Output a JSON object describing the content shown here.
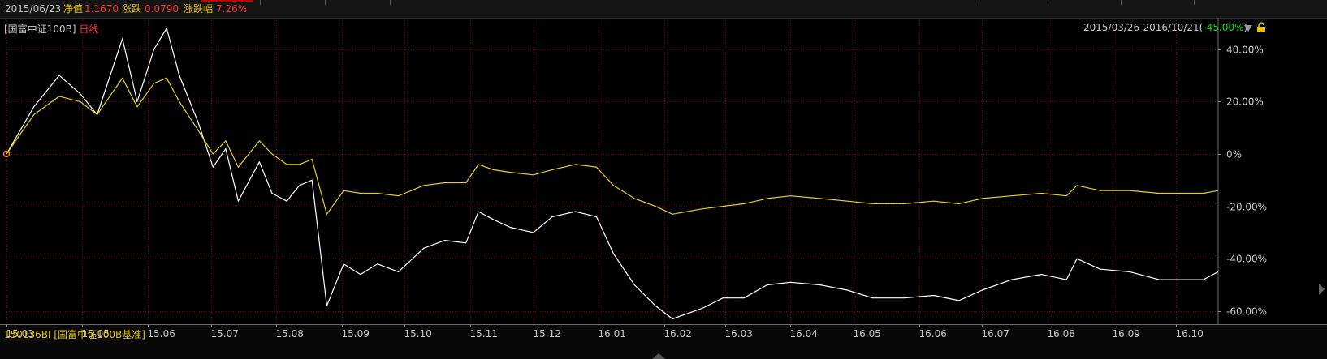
{
  "header": {
    "date": "2015/06/23",
    "nav_label": "净值",
    "nav_value": "1.1670",
    "change_label": "涨跌",
    "change_value": "0.0790",
    "pct_label": "涨跌幅",
    "pct_value": "7.26%"
  },
  "legend": {
    "fund_name": "[国富中证100B]",
    "period": "日线",
    "benchmark": "150136BI [国富中证100B基准]"
  },
  "range": {
    "text": "2015/03/26-2016/10/21",
    "pct_open": "(",
    "pct": "-45.00%",
    "pct_close": ")"
  },
  "colors": {
    "fund": "#ffffff",
    "benchmark": "#e6d21e",
    "grid": "#8a0000",
    "positive": "#ff3030",
    "negative": "#00e000",
    "label_yellow": "#e6c300"
  },
  "chart_data": {
    "type": "line",
    "title": "",
    "xlabel": "",
    "ylabel": "",
    "x_ticks": [
      "15.03",
      "15.05",
      "15.06",
      "15.07",
      "15.08",
      "15.09",
      "15.10",
      "15.11",
      "15.12",
      "16.01",
      "16.02",
      "16.03",
      "16.04",
      "16.05",
      "16.06",
      "16.07",
      "16.08",
      "16.09",
      "16.10"
    ],
    "y_ticks": [
      "40.00%",
      "20.00%",
      "0%",
      "-20.00%",
      "-40.00%",
      "-60.00%"
    ],
    "y_tick_values": [
      40,
      20,
      0,
      -20,
      -40,
      -60
    ],
    "ylim": [
      -65,
      52
    ],
    "xlim": [
      "2015-03-26",
      "2016-10-21"
    ],
    "grid": true,
    "series": [
      {
        "name": "国富中证100B",
        "x": [
          "2015-03-26",
          "2015-04-08",
          "2015-04-20",
          "2015-04-30",
          "2015-05-08",
          "2015-05-20",
          "2015-05-27",
          "2015-06-04",
          "2015-06-10",
          "2015-06-16",
          "2015-06-25",
          "2015-07-02",
          "2015-07-08",
          "2015-07-14",
          "2015-07-24",
          "2015-07-30",
          "2015-08-06",
          "2015-08-12",
          "2015-08-18",
          "2015-08-25",
          "2015-09-02",
          "2015-09-10",
          "2015-09-18",
          "2015-09-28",
          "2015-10-10",
          "2015-10-20",
          "2015-10-30",
          "2015-11-05",
          "2015-11-12",
          "2015-11-20",
          "2015-12-01",
          "2015-12-10",
          "2015-12-21",
          "2015-12-31",
          "2016-01-08",
          "2016-01-18",
          "2016-01-28",
          "2016-02-05",
          "2016-02-19",
          "2016-02-29",
          "2016-03-10",
          "2016-03-21",
          "2016-04-01",
          "2016-04-15",
          "2016-04-28",
          "2016-05-10",
          "2016-05-25",
          "2016-06-08",
          "2016-06-20",
          "2016-07-01",
          "2016-07-15",
          "2016-07-29",
          "2016-08-10",
          "2016-08-15",
          "2016-08-26",
          "2016-09-09",
          "2016-09-23",
          "2016-10-14",
          "2016-10-21"
        ],
        "values": [
          0,
          18,
          30,
          23,
          15,
          44,
          20,
          40,
          48,
          30,
          12,
          -5,
          2,
          -18,
          -3,
          -15,
          -18,
          -12,
          -10,
          -58,
          -42,
          -46,
          -42,
          -45,
          -36,
          -33,
          -34,
          -22,
          -25,
          -28,
          -30,
          -24,
          -22,
          -24,
          -38,
          -50,
          -58,
          -63,
          -59,
          -55,
          -55,
          -50,
          -49,
          -50,
          -52,
          -55,
          -55,
          -54,
          -56,
          -52,
          -48,
          -46,
          -48,
          -40,
          -44,
          -45,
          -48,
          -48,
          -45
        ]
      },
      {
        "name": "150136BI [国富中证100B基准]",
        "x": [
          "2015-03-26",
          "2015-04-08",
          "2015-04-20",
          "2015-04-30",
          "2015-05-08",
          "2015-05-20",
          "2015-05-27",
          "2015-06-04",
          "2015-06-10",
          "2015-06-16",
          "2015-06-25",
          "2015-07-02",
          "2015-07-08",
          "2015-07-14",
          "2015-07-24",
          "2015-07-30",
          "2015-08-06",
          "2015-08-12",
          "2015-08-18",
          "2015-08-25",
          "2015-09-02",
          "2015-09-10",
          "2015-09-18",
          "2015-09-28",
          "2015-10-10",
          "2015-10-20",
          "2015-10-30",
          "2015-11-05",
          "2015-11-12",
          "2015-11-20",
          "2015-12-01",
          "2015-12-10",
          "2015-12-21",
          "2015-12-31",
          "2016-01-08",
          "2016-01-18",
          "2016-01-28",
          "2016-02-05",
          "2016-02-19",
          "2016-02-29",
          "2016-03-10",
          "2016-03-21",
          "2016-04-01",
          "2016-04-15",
          "2016-04-28",
          "2016-05-10",
          "2016-05-25",
          "2016-06-08",
          "2016-06-20",
          "2016-07-01",
          "2016-07-15",
          "2016-07-29",
          "2016-08-10",
          "2016-08-15",
          "2016-08-26",
          "2016-09-09",
          "2016-09-23",
          "2016-10-14",
          "2016-10-21"
        ],
        "values": [
          0,
          15,
          22,
          20,
          15,
          29,
          18,
          27,
          29,
          20,
          9,
          0,
          5,
          -5,
          5,
          0,
          -4,
          -4,
          -2,
          -23,
          -14,
          -15,
          -15,
          -16,
          -12,
          -11,
          -11,
          -4,
          -6,
          -7,
          -8,
          -6,
          -4,
          -5,
          -12,
          -17,
          -20,
          -23,
          -21,
          -20,
          -19,
          -17,
          -16,
          -17,
          -18,
          -19,
          -19,
          -18,
          -19,
          -17,
          -16,
          -15,
          -16,
          -12,
          -14,
          -14,
          -15,
          -15,
          -14
        ]
      }
    ]
  }
}
